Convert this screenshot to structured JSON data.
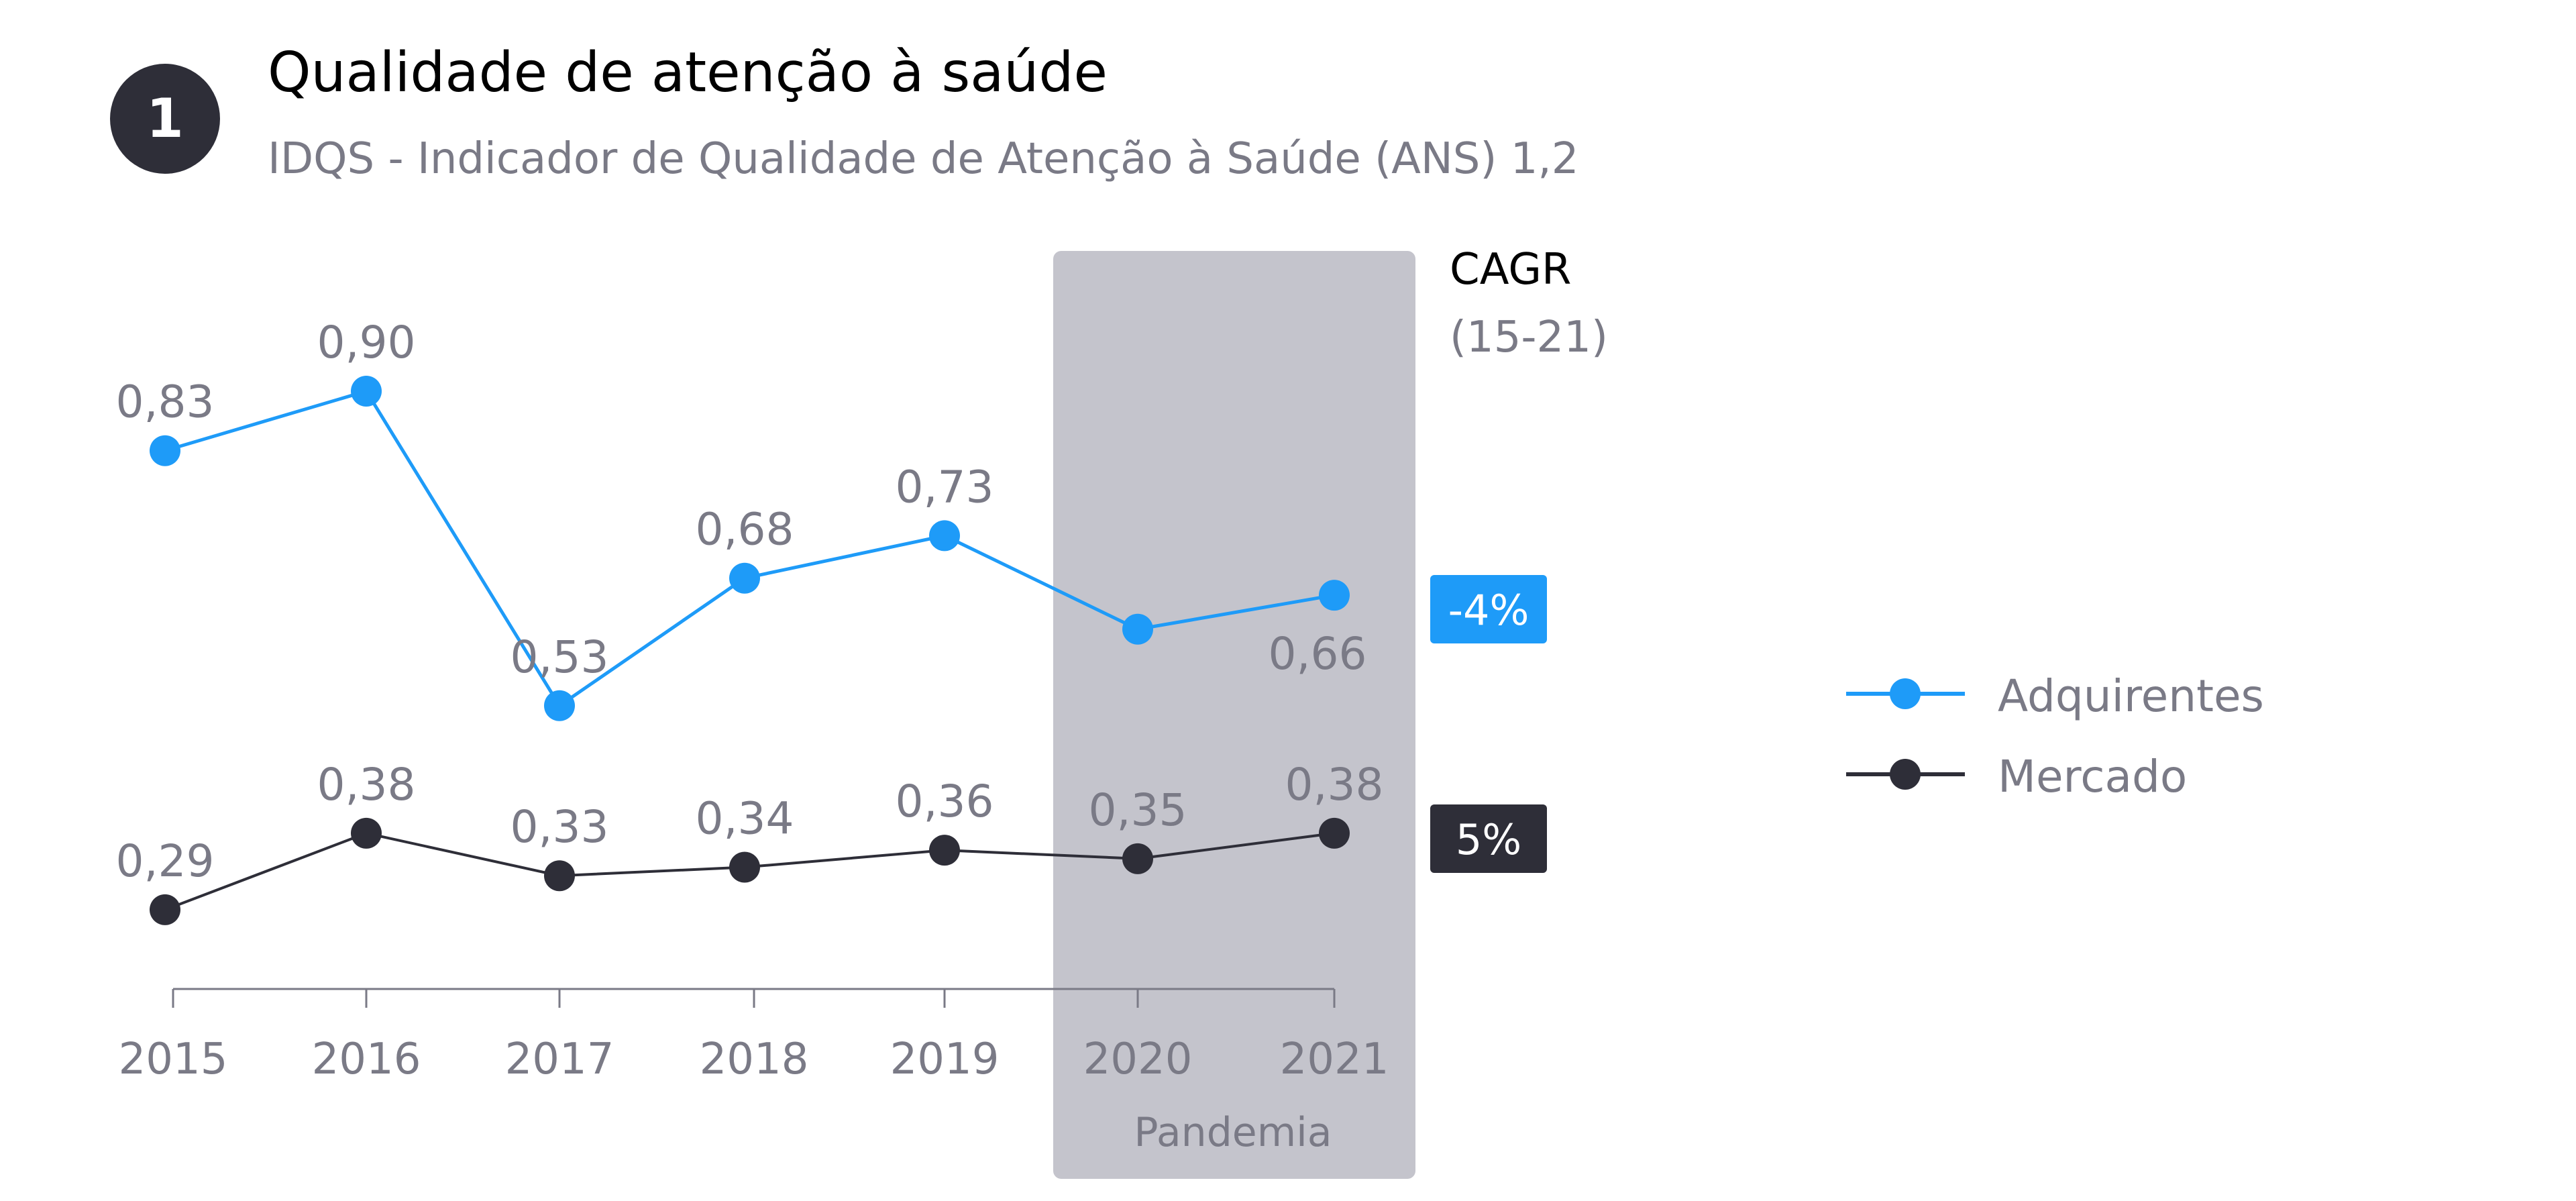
{
  "header": {
    "badge_number": "1",
    "title": "Qualidade de atenção à saúde",
    "subtitle": "IDQS - Indicador de Qualidade de Atenção à Saúde (ANS) 1,2"
  },
  "chart_data": {
    "type": "line",
    "title": "Qualidade de atenção à saúde",
    "subtitle": "IDQS - Indicador de Qualidade de Atenção à Saúde (ANS) 1,2",
    "categories": [
      "2015",
      "2016",
      "2017",
      "2018",
      "2019",
      "2020",
      "2021"
    ],
    "ylim": [
      0.2,
      1.0
    ],
    "grid": false,
    "legend_position": "right",
    "series": [
      {
        "name": "Adquirentes",
        "color": "#1e9bf8",
        "values": [
          0.83,
          0.9,
          0.53,
          0.68,
          0.73,
          0.62,
          0.66
        ],
        "labels": [
          "0,83",
          "0,90",
          "0,53",
          "0,68",
          "0,73",
          "",
          "0,66"
        ],
        "cagr": "-4%"
      },
      {
        "name": "Mercado",
        "color": "#2e2e38",
        "values": [
          0.29,
          0.38,
          0.33,
          0.34,
          0.36,
          0.35,
          0.38
        ],
        "labels": [
          "0,29",
          "0,38",
          "0,33",
          "0,34",
          "0,36",
          "0,35",
          "0,38"
        ],
        "cagr": "5%"
      }
    ],
    "highlight": {
      "label": "Pandemia",
      "from": "2020",
      "to": "2021",
      "color": "#c4c4cc"
    },
    "cagr_header": {
      "title": "CAGR",
      "period": "(15-21)"
    }
  }
}
